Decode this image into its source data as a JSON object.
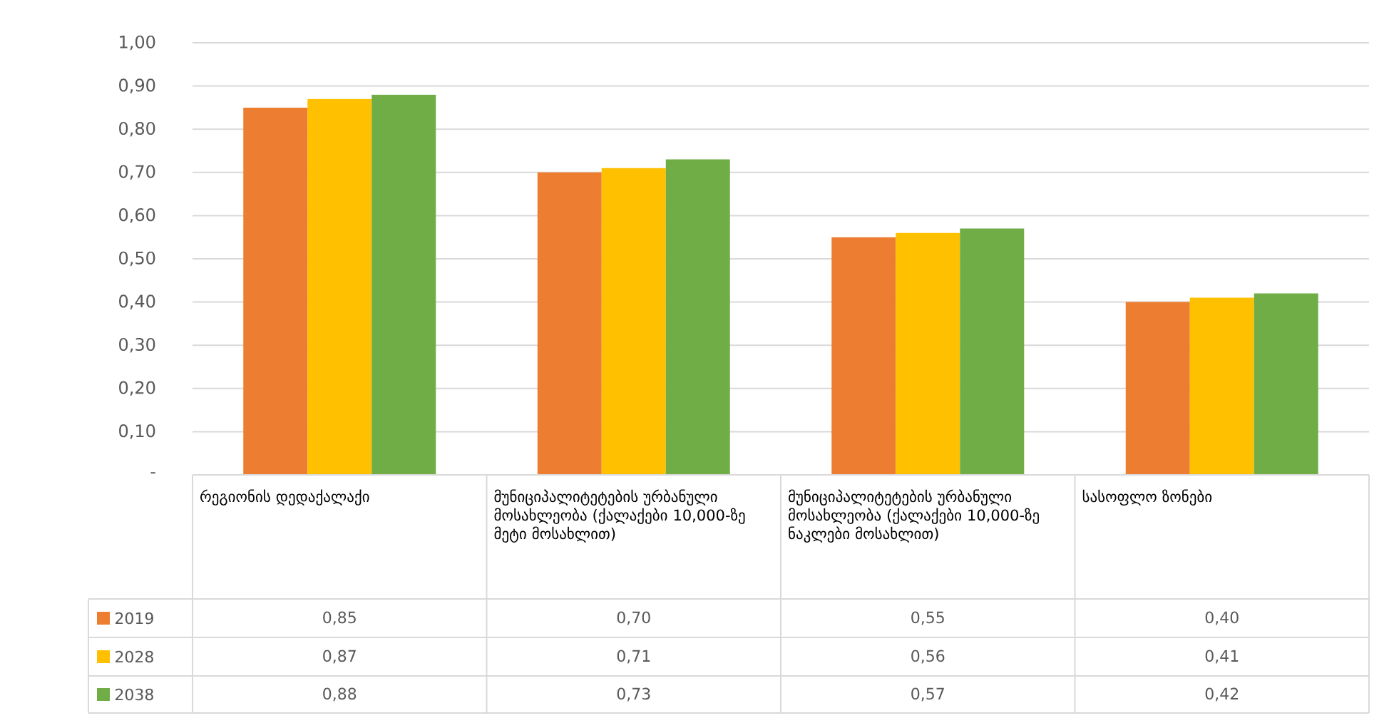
{
  "chart_data": {
    "type": "bar",
    "categories": [
      "რეგიონის დედაქალაქი",
      "მუნიციპალიტეტების ურბანული მოსახლეობა (ქალაქები 10,000-ზე მეტი მოსახლით)",
      "მუნიციპალიტეტების ურბანული მოსახლეობა (ქალაქები 10,000-ზე ნაკლები მოსახლით)",
      "სასოფლო ზონები"
    ],
    "series": [
      {
        "name": "2019",
        "color": "#ed7d31",
        "values": [
          0.85,
          0.7,
          0.55,
          0.4
        ],
        "value_labels": [
          "0,85",
          "0,70",
          "0,55",
          "0,40"
        ]
      },
      {
        "name": "2028",
        "color": "#ffc000",
        "values": [
          0.87,
          0.71,
          0.56,
          0.41
        ],
        "value_labels": [
          "0,87",
          "0,71",
          "0,56",
          "0,41"
        ]
      },
      {
        "name": "2038",
        "color": "#70ad47",
        "values": [
          0.88,
          0.73,
          0.57,
          0.42
        ],
        "value_labels": [
          "0,88",
          "0,73",
          "0,57",
          "0,42"
        ]
      }
    ],
    "ylim": [
      0,
      1
    ],
    "yticks": [
      {
        "value": 0,
        "label": "-"
      },
      {
        "value": 0.1,
        "label": "0,10"
      },
      {
        "value": 0.2,
        "label": "0,20"
      },
      {
        "value": 0.3,
        "label": "0,30"
      },
      {
        "value": 0.4,
        "label": "0,40"
      },
      {
        "value": 0.5,
        "label": "0,50"
      },
      {
        "value": 0.6,
        "label": "0,60"
      },
      {
        "value": 0.7,
        "label": "0,70"
      },
      {
        "value": 0.8,
        "label": "0,80"
      },
      {
        "value": 0.9,
        "label": "0,90"
      },
      {
        "value": 1,
        "label": "1,00"
      }
    ],
    "grid": "y",
    "legend": "bottom"
  }
}
